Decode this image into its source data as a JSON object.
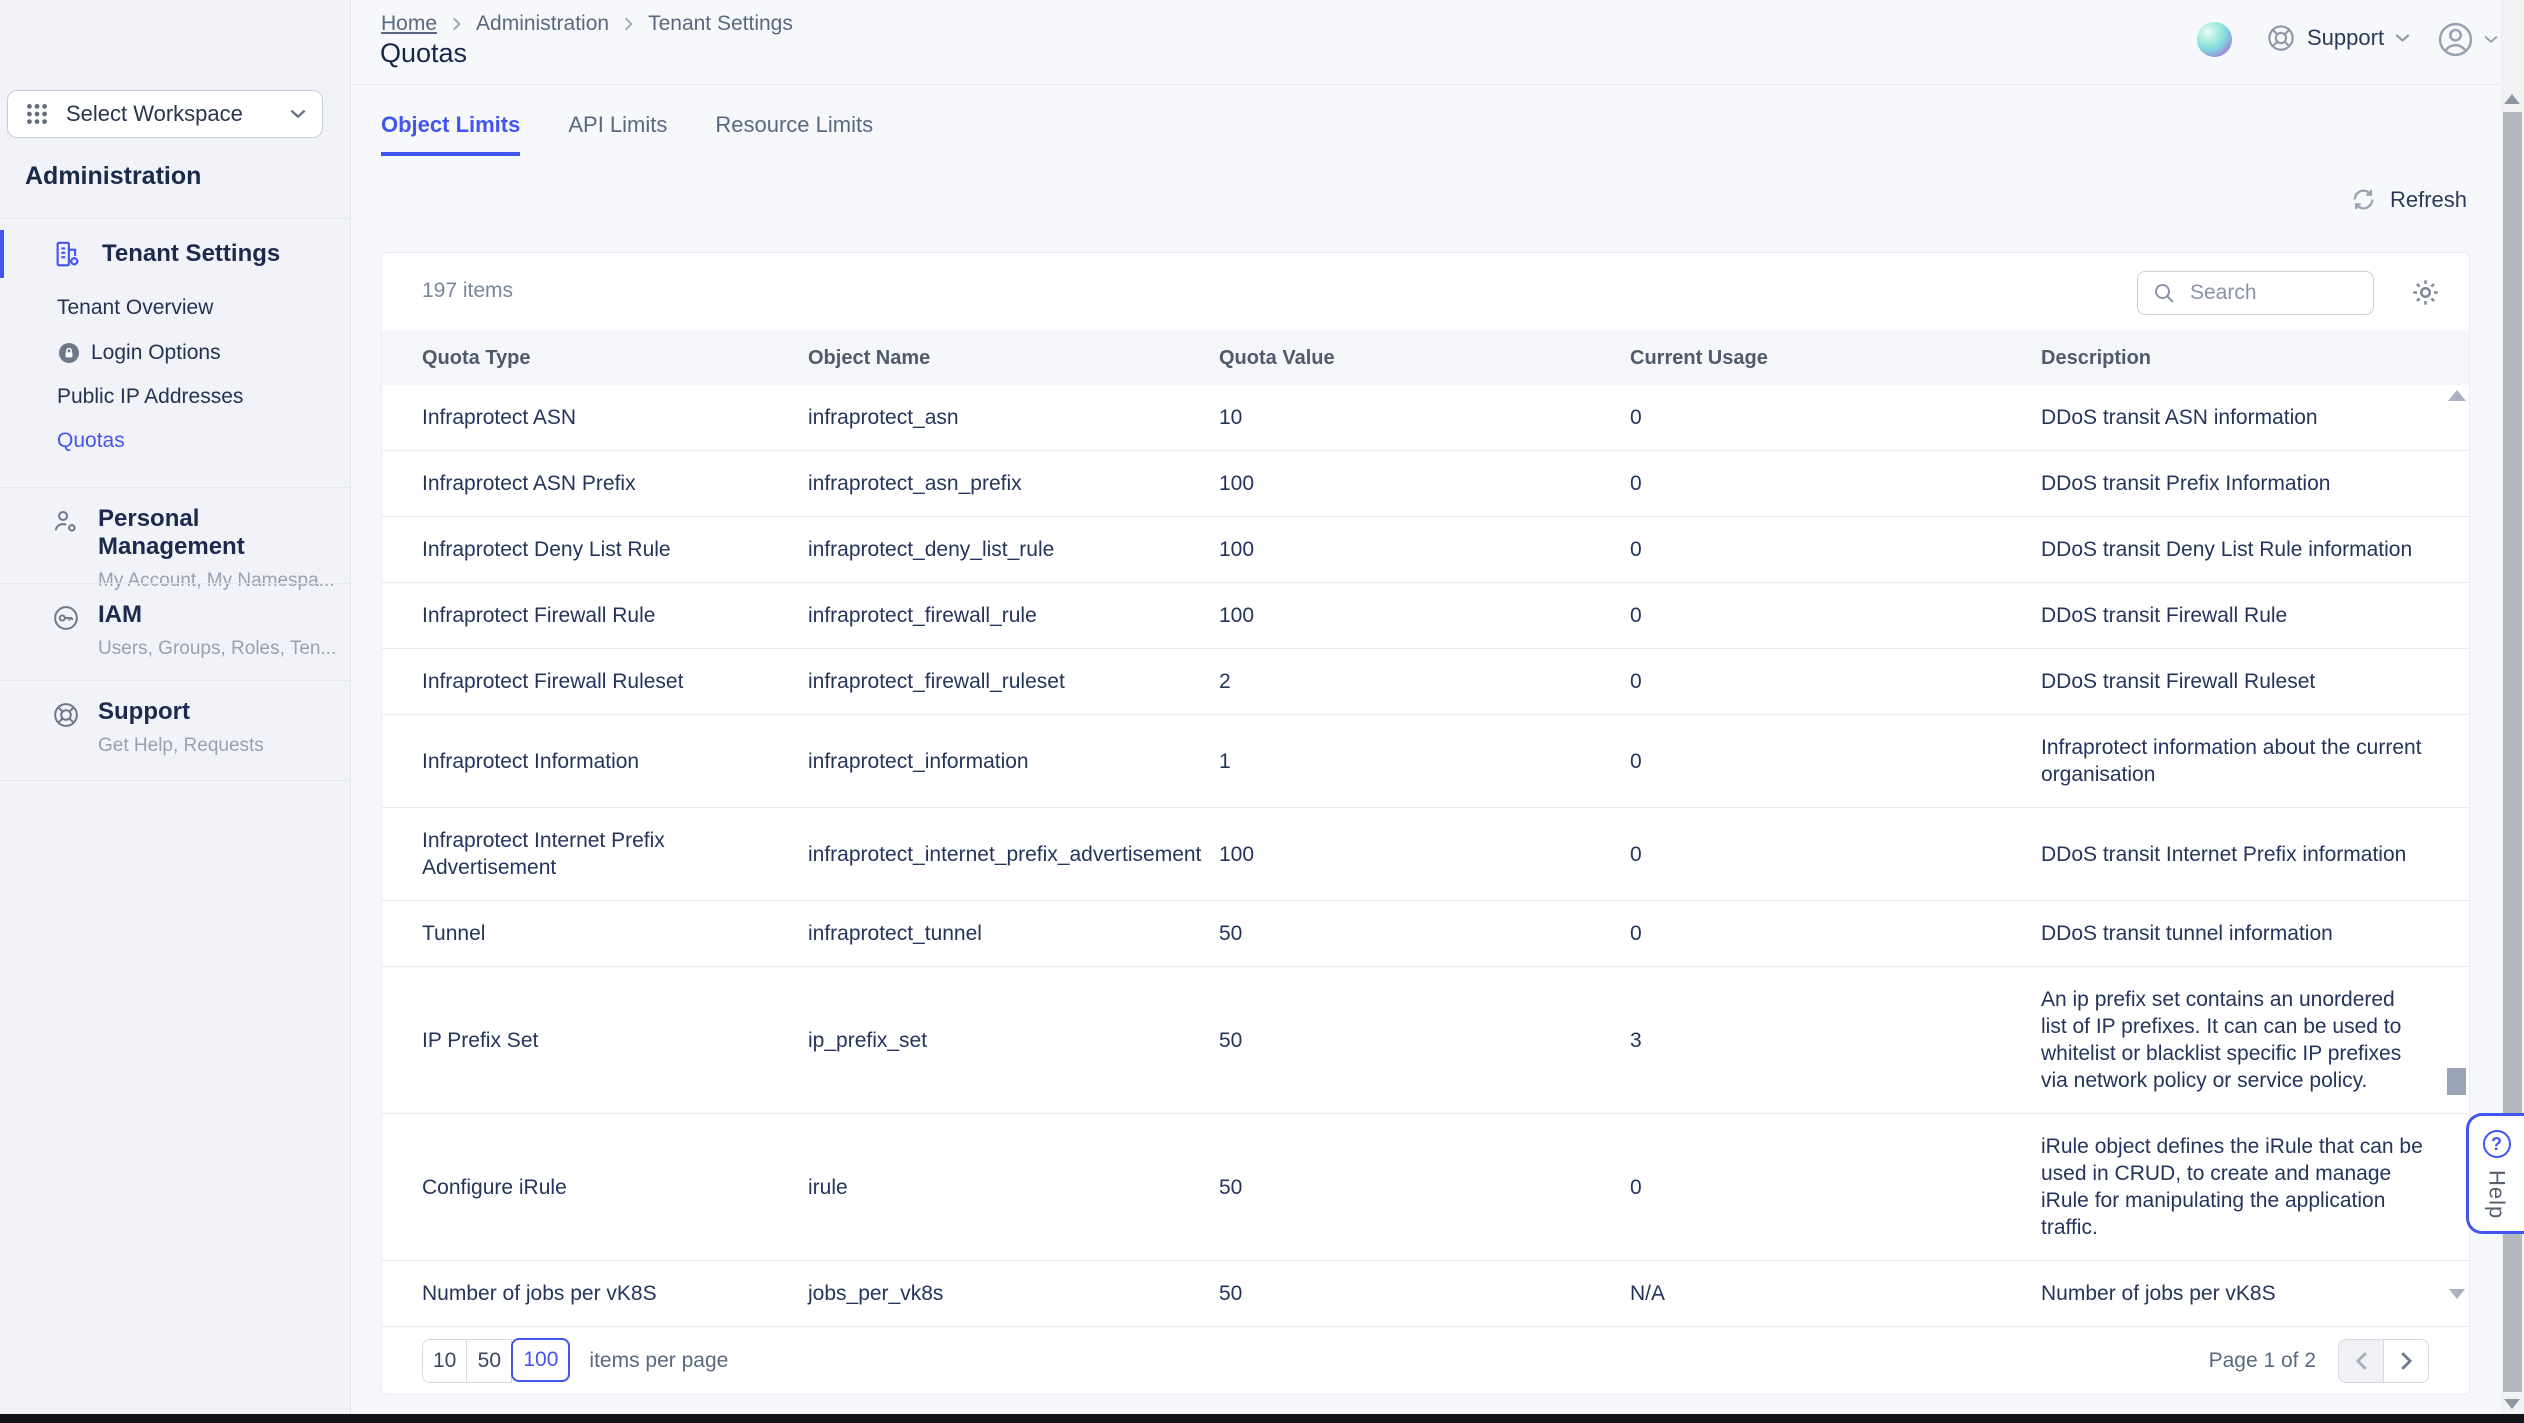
{
  "colors": {
    "accent": "#4355f0",
    "text_navy": "#25345a",
    "sidebar_bg": "#f1f3f8"
  },
  "breadcrumb": {
    "items": [
      "Home",
      "Administration",
      "Tenant Settings"
    ]
  },
  "page_title": "Quotas",
  "topbar": {
    "support_label": "Support"
  },
  "tabs": [
    {
      "label": "Object Limits",
      "active": true
    },
    {
      "label": "API Limits",
      "active": false
    },
    {
      "label": "Resource Limits",
      "active": false
    }
  ],
  "toolbar": {
    "refresh_label": "Refresh"
  },
  "sidebar": {
    "workspace_selector_label": "Select Workspace",
    "section_title": "Administration",
    "active_group": {
      "label": "Tenant Settings"
    },
    "sub_items": [
      {
        "label": "Tenant Overview",
        "icon": "",
        "active": false
      },
      {
        "label": "Login Options",
        "icon": "lock-circle",
        "active": false
      },
      {
        "label": "Public IP Addresses",
        "icon": "",
        "active": false
      },
      {
        "label": "Quotas",
        "icon": "",
        "active": true
      }
    ],
    "sections": [
      {
        "title": "Personal Management",
        "subtitle": "My Account, My Namespa...",
        "icon": "person-gear"
      },
      {
        "title": "IAM",
        "subtitle": "Users, Groups, Roles, Ten...",
        "icon": "key-circle"
      },
      {
        "title": "Support",
        "subtitle": "Get Help, Requests",
        "icon": "life-buoy"
      }
    ]
  },
  "table": {
    "items_count": "197 items",
    "search_placeholder": "Search",
    "columns": [
      "Quota Type",
      "Object Name",
      "Quota Value",
      "Current Usage",
      "Description"
    ],
    "rows": [
      {
        "quota_type": "Infraprotect ASN",
        "object_name": "infraprotect_asn",
        "quota_value": "10",
        "current_usage": "0",
        "description": "DDoS transit ASN information"
      },
      {
        "quota_type": "Infraprotect ASN Prefix",
        "object_name": "infraprotect_asn_prefix",
        "quota_value": "100",
        "current_usage": "0",
        "description": "DDoS transit Prefix Information"
      },
      {
        "quota_type": "Infraprotect Deny List Rule",
        "object_name": "infraprotect_deny_list_rule",
        "quota_value": "100",
        "current_usage": "0",
        "description": "DDoS transit Deny List Rule information"
      },
      {
        "quota_type": "Infraprotect Firewall Rule",
        "object_name": "infraprotect_firewall_rule",
        "quota_value": "100",
        "current_usage": "0",
        "description": "DDoS transit Firewall Rule"
      },
      {
        "quota_type": "Infraprotect Firewall Ruleset",
        "object_name": "infraprotect_firewall_ruleset",
        "quota_value": "2",
        "current_usage": "0",
        "description": "DDoS transit Firewall Ruleset"
      },
      {
        "quota_type": "Infraprotect Information",
        "object_name": "infraprotect_information",
        "quota_value": "1",
        "current_usage": "0",
        "description": "Infraprotect information about the current organisation"
      },
      {
        "quota_type": "Infraprotect Internet Prefix Advertisement",
        "object_name": "infraprotect_internet_prefix_advertisement",
        "quota_value": "100",
        "current_usage": "0",
        "description": "DDoS transit Internet Prefix information"
      },
      {
        "quota_type": "Tunnel",
        "object_name": "infraprotect_tunnel",
        "quota_value": "50",
        "current_usage": "0",
        "description": "DDoS transit tunnel information"
      },
      {
        "quota_type": "IP Prefix Set",
        "object_name": "ip_prefix_set",
        "quota_value": "50",
        "current_usage": "3",
        "description": "An ip prefix set contains an unordered list of IP prefixes. It can can be used to whitelist or blacklist specific IP prefixes via network policy or service policy."
      },
      {
        "quota_type": "Configure iRule",
        "object_name": "irule",
        "quota_value": "50",
        "current_usage": "0",
        "description": "iRule object defines the iRule that can be used in CRUD, to create and manage iRule for manipulating the application traffic."
      },
      {
        "quota_type": "Number of jobs per vK8S",
        "object_name": "jobs_per_vk8s",
        "quota_value": "50",
        "current_usage": "N/A",
        "description": "Number of jobs per vK8S"
      }
    ]
  },
  "pagination": {
    "page_sizes": [
      "10",
      "50",
      "100"
    ],
    "selected_size": "100",
    "items_per_page_label": "items per page",
    "page_label": "Page 1 of 2"
  },
  "help_tab": {
    "label": "Help"
  }
}
